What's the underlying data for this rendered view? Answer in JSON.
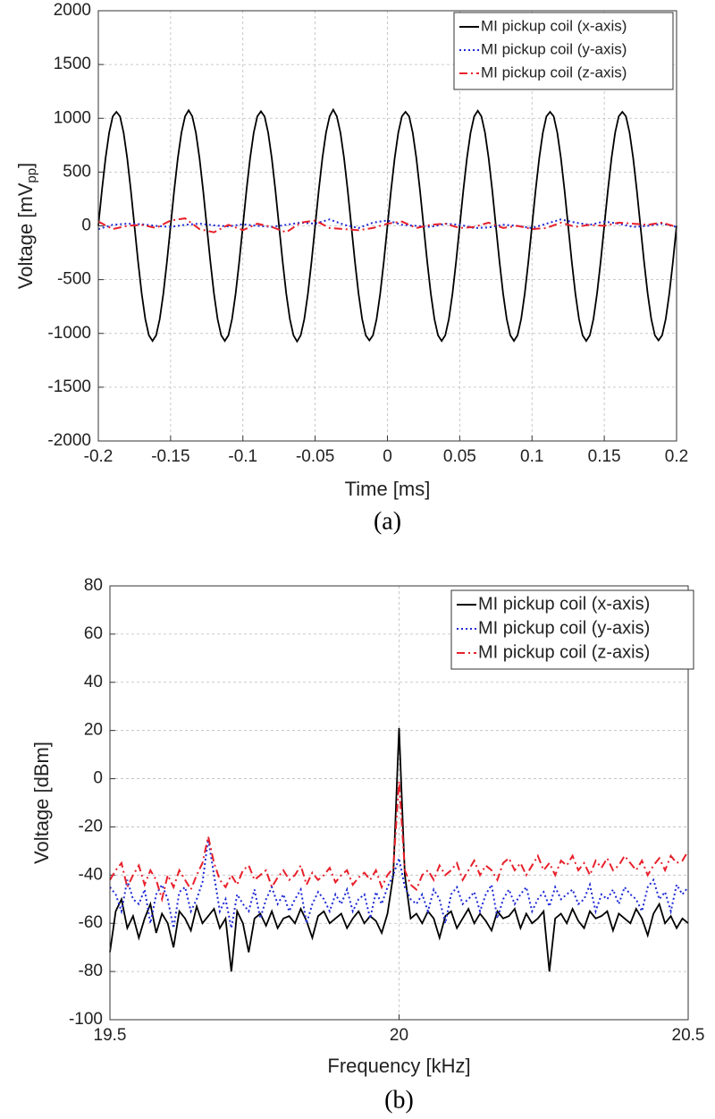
{
  "chart_data": [
    {
      "type": "line",
      "xlabel": "Time [ms]",
      "ylabel": {
        "text": "Voltage [mV",
        "subscript": "pp",
        "suffix": "]"
      },
      "caption": "(a)",
      "xlim": [
        -0.2,
        0.2
      ],
      "xticks": [
        -0.2,
        -0.15,
        -0.1,
        -0.05,
        0,
        0.05,
        0.1,
        0.15,
        0.2
      ],
      "ylim": [
        -2000,
        2000
      ],
      "yticks": [
        -2000,
        -1500,
        -1000,
        -500,
        0,
        500,
        1000,
        1500,
        2000
      ],
      "grid": true,
      "legend": "upper right",
      "series": [
        {
          "name": "MI pickup coil (x-axis)",
          "color": "#000000",
          "dash": "solid",
          "x": [
            -0.2,
            -0.1975,
            -0.195,
            -0.1925,
            -0.19,
            -0.1875,
            -0.185,
            -0.1825,
            -0.18,
            -0.1775,
            -0.175,
            -0.1725,
            -0.17,
            -0.1675,
            -0.165,
            -0.1625,
            -0.16,
            -0.1575,
            -0.155,
            -0.1525,
            -0.15,
            -0.1475,
            -0.145,
            -0.1425,
            -0.14,
            -0.1375,
            -0.135,
            -0.1325,
            -0.13,
            -0.1275,
            -0.125,
            -0.1225,
            -0.12,
            -0.1175,
            -0.115,
            -0.1125,
            -0.11,
            -0.1075,
            -0.105,
            -0.1025,
            -0.1,
            -0.0975,
            -0.095,
            -0.0925,
            -0.09,
            -0.0875,
            -0.085,
            -0.0825,
            -0.08,
            -0.0775,
            -0.075,
            -0.0725,
            -0.07,
            -0.0675,
            -0.065,
            -0.0625,
            -0.06,
            -0.0575,
            -0.055,
            -0.0525,
            -0.05,
            -0.0475,
            -0.045,
            -0.0425,
            -0.04,
            -0.0375,
            -0.035,
            -0.0325,
            -0.03,
            -0.0275,
            -0.025,
            -0.0225,
            -0.02,
            -0.0175,
            -0.015,
            -0.0125,
            -0.01,
            -0.0075,
            -0.005,
            -0.0025,
            0,
            0.0025,
            0.005,
            0.0075,
            0.01,
            0.0125,
            0.015,
            0.0175,
            0.02,
            0.0225,
            0.025,
            0.0275,
            0.03,
            0.0325,
            0.035,
            0.0375,
            0.04,
            0.0425,
            0.045,
            0.0475,
            0.05,
            0.0525,
            0.055,
            0.0575,
            0.06,
            0.0625,
            0.065,
            0.0675,
            0.07,
            0.0725,
            0.075,
            0.0775,
            0.08,
            0.0825,
            0.085,
            0.0875,
            0.09,
            0.0925,
            0.095,
            0.0975,
            0.1,
            0.1025,
            0.105,
            0.1075,
            0.11,
            0.1125,
            0.115,
            0.1175,
            0.12,
            0.1225,
            0.125,
            0.1275,
            0.13,
            0.1325,
            0.135,
            0.1375,
            0.14,
            0.1425,
            0.145,
            0.1475,
            0.15,
            0.1525,
            0.155,
            0.1575,
            0.16,
            0.1625,
            0.165,
            0.1675,
            0.17,
            0.1725,
            0.175,
            0.1775,
            0.18,
            0.1825,
            0.185,
            0.1875,
            0.19,
            0.1925,
            0.195,
            0.1975,
            0.2
          ],
          "values": [
            0,
            331,
            629,
            866,
            1018,
            1060,
            1018,
            866,
            629,
            331,
            0,
            -331,
            -629,
            -866,
            -1018,
            -1070,
            -1018,
            -866,
            -629,
            -331,
            0,
            331,
            629,
            866,
            1018,
            1075,
            1018,
            866,
            629,
            331,
            0,
            -331,
            -629,
            -866,
            -1018,
            -1070,
            -1018,
            -866,
            -629,
            -331,
            0,
            331,
            629,
            866,
            1018,
            1065,
            1018,
            866,
            629,
            331,
            0,
            -331,
            -629,
            -866,
            -1018,
            -1075,
            -1018,
            -866,
            -629,
            -331,
            0,
            331,
            629,
            866,
            1018,
            1080,
            1018,
            866,
            629,
            331,
            0,
            -331,
            -629,
            -866,
            -1018,
            -1065,
            -1018,
            -866,
            -629,
            -331,
            0,
            331,
            629,
            866,
            1018,
            1060,
            1018,
            866,
            629,
            331,
            0,
            -331,
            -629,
            -866,
            -1018,
            -1070,
            -1018,
            -866,
            -629,
            -331,
            0,
            331,
            629,
            866,
            1018,
            1070,
            1018,
            866,
            629,
            331,
            0,
            -331,
            -629,
            -866,
            -1018,
            -1070,
            -1018,
            -866,
            -629,
            -331,
            0,
            331,
            629,
            866,
            1018,
            1060,
            1018,
            866,
            629,
            331,
            0,
            -331,
            -629,
            -866,
            -1018,
            -1070,
            -1018,
            -866,
            -629,
            -331,
            0,
            331,
            629,
            866,
            1018,
            1060,
            1018,
            866,
            629,
            331,
            0,
            -331,
            -629,
            -866,
            -1018,
            -1065,
            -1018,
            -866,
            -629,
            -331,
            0
          ]
        },
        {
          "name": "MI pickup coil (y-axis)",
          "color": "#1f2bd6",
          "dash": "dotted",
          "x": [
            -0.2,
            -0.19,
            -0.18,
            -0.17,
            -0.16,
            -0.15,
            -0.14,
            -0.13,
            -0.12,
            -0.11,
            -0.1,
            -0.09,
            -0.08,
            -0.07,
            -0.06,
            -0.05,
            -0.04,
            -0.03,
            -0.02,
            -0.01,
            0,
            0.01,
            0.02,
            0.03,
            0.04,
            0.05,
            0.06,
            0.07,
            0.08,
            0.09,
            0.1,
            0.11,
            0.12,
            0.13,
            0.14,
            0.15,
            0.16,
            0.17,
            0.18,
            0.19,
            0.2
          ],
          "values": [
            -30,
            10,
            20,
            15,
            0,
            -10,
            10,
            20,
            5,
            -5,
            15,
            0,
            -10,
            10,
            30,
            20,
            60,
            10,
            -20,
            30,
            50,
            10,
            0,
            -10,
            20,
            10,
            -20,
            -15,
            10,
            0,
            -20,
            20,
            60,
            30,
            10,
            40,
            20,
            -10,
            0,
            20,
            -10
          ]
        },
        {
          "name": "MI pickup coil (z-axis)",
          "color": "#e8202a",
          "dash": "dashdot",
          "x": [
            -0.2,
            -0.19,
            -0.18,
            -0.17,
            -0.16,
            -0.15,
            -0.14,
            -0.13,
            -0.12,
            -0.11,
            -0.1,
            -0.09,
            -0.08,
            -0.07,
            -0.06,
            -0.05,
            -0.04,
            -0.03,
            -0.02,
            -0.01,
            0,
            0.01,
            0.02,
            0.03,
            0.04,
            0.05,
            0.06,
            0.07,
            0.08,
            0.09,
            0.1,
            0.11,
            0.12,
            0.13,
            0.14,
            0.15,
            0.16,
            0.17,
            0.18,
            0.19,
            0.2
          ],
          "values": [
            40,
            -30,
            0,
            10,
            -20,
            50,
            70,
            -30,
            -60,
            10,
            -40,
            20,
            -10,
            -60,
            30,
            50,
            -20,
            -30,
            -40,
            -20,
            20,
            40,
            -20,
            10,
            20,
            -20,
            -10,
            30,
            -20,
            0,
            -30,
            -20,
            30,
            -10,
            10,
            0,
            30,
            20,
            10,
            30,
            -10
          ]
        }
      ]
    },
    {
      "type": "line",
      "xlabel": "Frequency [kHz]",
      "ylabel": "Voltage [dBm]",
      "caption": "(b)",
      "xlim": [
        19.5,
        20.5
      ],
      "xticks": [
        19.5,
        20,
        20.5
      ],
      "ylim": [
        -100,
        80
      ],
      "yticks": [
        -100,
        -80,
        -60,
        -40,
        -20,
        0,
        20,
        40,
        60,
        80
      ],
      "grid": true,
      "legend": "upper right",
      "x": [
        19.5,
        19.51,
        19.52,
        19.53,
        19.54,
        19.55,
        19.56,
        19.57,
        19.58,
        19.59,
        19.6,
        19.61,
        19.62,
        19.63,
        19.64,
        19.65,
        19.66,
        19.67,
        19.68,
        19.69,
        19.7,
        19.71,
        19.72,
        19.73,
        19.74,
        19.75,
        19.76,
        19.77,
        19.78,
        19.79,
        19.8,
        19.81,
        19.82,
        19.83,
        19.84,
        19.85,
        19.86,
        19.87,
        19.88,
        19.89,
        19.9,
        19.91,
        19.92,
        19.93,
        19.94,
        19.95,
        19.96,
        19.97,
        19.98,
        19.99,
        20,
        20.01,
        20.02,
        20.03,
        20.04,
        20.05,
        20.06,
        20.07,
        20.08,
        20.09,
        20.1,
        20.11,
        20.12,
        20.13,
        20.14,
        20.15,
        20.16,
        20.17,
        20.18,
        20.19,
        20.2,
        20.21,
        20.22,
        20.23,
        20.24,
        20.25,
        20.26,
        20.27,
        20.28,
        20.29,
        20.3,
        20.31,
        20.32,
        20.33,
        20.34,
        20.35,
        20.36,
        20.37,
        20.38,
        20.39,
        20.4,
        20.41,
        20.42,
        20.43,
        20.44,
        20.45,
        20.46,
        20.47,
        20.48,
        20.49,
        20.5
      ],
      "series": [
        {
          "name": "MI pickup coil (x-axis)",
          "color": "#000000",
          "dash": "solid",
          "values": [
            -72,
            -55,
            -50,
            -62,
            -57,
            -66,
            -58,
            -52,
            -64,
            -56,
            -60,
            -70,
            -55,
            -58,
            -63,
            -53,
            -60,
            -57,
            -54,
            -62,
            -58,
            -80,
            -55,
            -60,
            -72,
            -58,
            -56,
            -61,
            -55,
            -62,
            -58,
            -57,
            -60,
            -54,
            -59,
            -66,
            -57,
            -55,
            -60,
            -58,
            -56,
            -62,
            -58,
            -55,
            -60,
            -57,
            -59,
            -64,
            -56,
            -40,
            21,
            -40,
            -58,
            -56,
            -60,
            -55,
            -58,
            -66,
            -57,
            -55,
            -62,
            -58,
            -54,
            -60,
            -56,
            -59,
            -63,
            -55,
            -58,
            -57,
            -54,
            -62,
            -56,
            -60,
            -58,
            -55,
            -80,
            -58,
            -56,
            -60,
            -54,
            -59,
            -62,
            -55,
            -58,
            -57,
            -55,
            -63,
            -56,
            -58,
            -60,
            -54,
            -58,
            -65,
            -56,
            -52,
            -60,
            -57,
            -62,
            -58,
            -60
          ]
        },
        {
          "name": "MI pickup coil (y-axis)",
          "color": "#1f2bd6",
          "dash": "dotted",
          "values": [
            -45,
            -48,
            -55,
            -42,
            -50,
            -52,
            -46,
            -60,
            -48,
            -44,
            -50,
            -62,
            -47,
            -45,
            -55,
            -50,
            -43,
            -25,
            -40,
            -55,
            -50,
            -62,
            -48,
            -52,
            -55,
            -46,
            -58,
            -50,
            -45,
            -52,
            -48,
            -55,
            -50,
            -46,
            -60,
            -52,
            -47,
            -50,
            -55,
            -48,
            -52,
            -46,
            -55,
            -50,
            -48,
            -58,
            -47,
            -52,
            -45,
            -40,
            -33,
            -45,
            -50,
            -52,
            -48,
            -55,
            -46,
            -50,
            -60,
            -48,
            -45,
            -52,
            -50,
            -47,
            -55,
            -48,
            -44,
            -58,
            -50,
            -46,
            -52,
            -48,
            -45,
            -55,
            -50,
            -47,
            -53,
            -45,
            -50,
            -48,
            -46,
            -52,
            -50,
            -44,
            -55,
            -48,
            -50,
            -46,
            -52,
            -45,
            -48,
            -50,
            -55,
            -45,
            -42,
            -50,
            -47,
            -55,
            -44,
            -48,
            -45
          ]
        },
        {
          "name": "MI pickup coil (z-axis)",
          "color": "#e8202a",
          "dash": "dashdot",
          "values": [
            -42,
            -38,
            -35,
            -45,
            -40,
            -36,
            -44,
            -38,
            -42,
            -50,
            -40,
            -45,
            -38,
            -42,
            -46,
            -40,
            -35,
            -24,
            -35,
            -42,
            -45,
            -40,
            -44,
            -38,
            -36,
            -42,
            -40,
            -38,
            -45,
            -41,
            -38,
            -42,
            -40,
            -36,
            -44,
            -39,
            -42,
            -40,
            -37,
            -43,
            -40,
            -38,
            -44,
            -41,
            -39,
            -42,
            -38,
            -45,
            -40,
            -37,
            -1,
            -38,
            -44,
            -46,
            -40,
            -38,
            -42,
            -36,
            -40,
            -38,
            -35,
            -42,
            -38,
            -34,
            -40,
            -36,
            -38,
            -42,
            -35,
            -33,
            -38,
            -35,
            -40,
            -36,
            -32,
            -38,
            -35,
            -40,
            -34,
            -36,
            -32,
            -38,
            -35,
            -40,
            -34,
            -37,
            -33,
            -38,
            -36,
            -32,
            -35,
            -38,
            -34,
            -40,
            -36,
            -33,
            -38,
            -32,
            -35,
            -34,
            -30
          ]
        }
      ]
    }
  ]
}
